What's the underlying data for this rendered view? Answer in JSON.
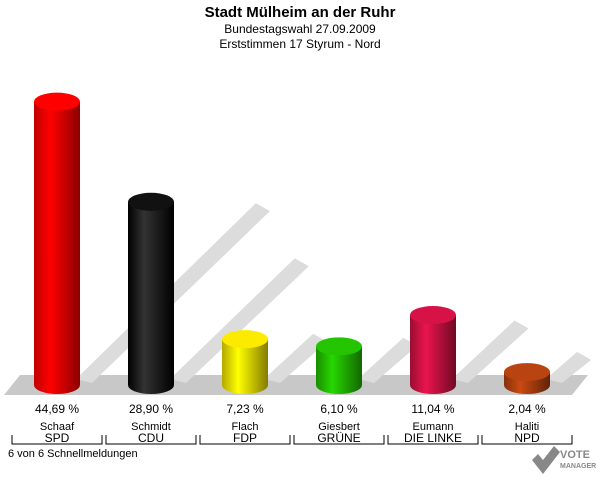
{
  "header": {
    "title": "Stadt Mülheim an der Ruhr",
    "subtitle": "Bundestagswahl 27.09.2009",
    "subtitle2": "Erststimmen 17 Styrum - Nord"
  },
  "chart_data": {
    "type": "bar",
    "categories": [
      "SPD",
      "CDU",
      "FDP",
      "GRÜNE",
      "DIE LINKE",
      "NPD"
    ],
    "candidates": [
      "Schaaf",
      "Schmidt",
      "Flach",
      "Giesbert",
      "Eumann",
      "Haliti"
    ],
    "values": [
      44.69,
      28.9,
      7.23,
      6.1,
      11.04,
      2.04
    ],
    "value_labels": [
      "44,69 %",
      "28,90 %",
      "7,23 %",
      "6,10 %",
      "11,04 %",
      "2,04 %"
    ],
    "colors": [
      "#ff0000",
      "#000000",
      "#f0e000",
      "#22bb00",
      "#cc1144",
      "#b04010"
    ],
    "ylim": [
      0,
      50
    ]
  },
  "footer": {
    "status": "6 von 6 Schnellmeldungen"
  },
  "logo": {
    "line1": "VOTE",
    "line2": "MANAGER"
  }
}
